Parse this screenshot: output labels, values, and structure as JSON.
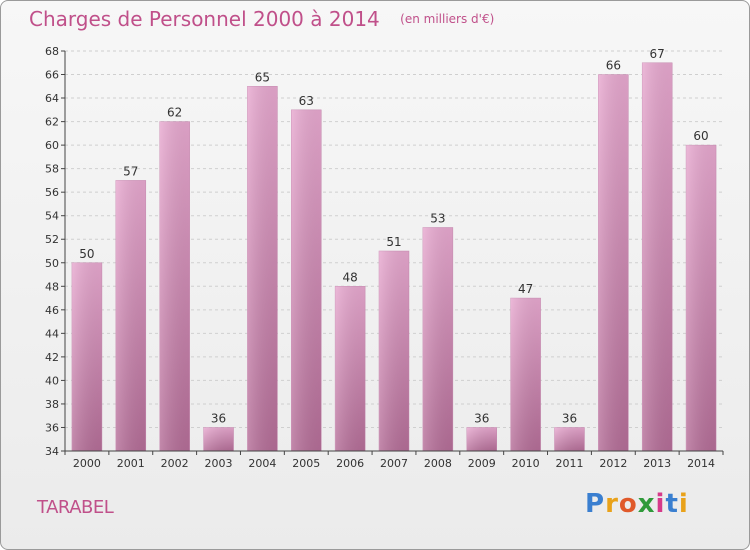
{
  "header": {
    "title": "Charges de Personnel 2000 à 2014",
    "unit": "(en milliers d'€)"
  },
  "footer": {
    "commune": "TARABEL",
    "logo_text": "Proxiti"
  },
  "colors": {
    "title": "#c0508a",
    "bar_light": "#e8a9d0",
    "bar_dark": "#b56e98"
  },
  "chart_data": {
    "type": "bar",
    "title": "Charges de Personnel 2000 à 2014",
    "subtitle": "(en milliers d'€)",
    "categories": [
      "2000",
      "2001",
      "2002",
      "2003",
      "2004",
      "2005",
      "2006",
      "2007",
      "2008",
      "2009",
      "2010",
      "2011",
      "2012",
      "2013",
      "2014"
    ],
    "values": [
      50,
      57,
      62,
      36,
      65,
      63,
      48,
      51,
      53,
      36,
      47,
      36,
      66,
      67,
      60
    ],
    "ylim": [
      34,
      68
    ],
    "yticks": [
      34,
      36,
      38,
      40,
      42,
      44,
      46,
      48,
      50,
      52,
      54,
      56,
      58,
      60,
      62,
      64,
      66,
      68
    ],
    "grid": true,
    "data_labels": true
  }
}
